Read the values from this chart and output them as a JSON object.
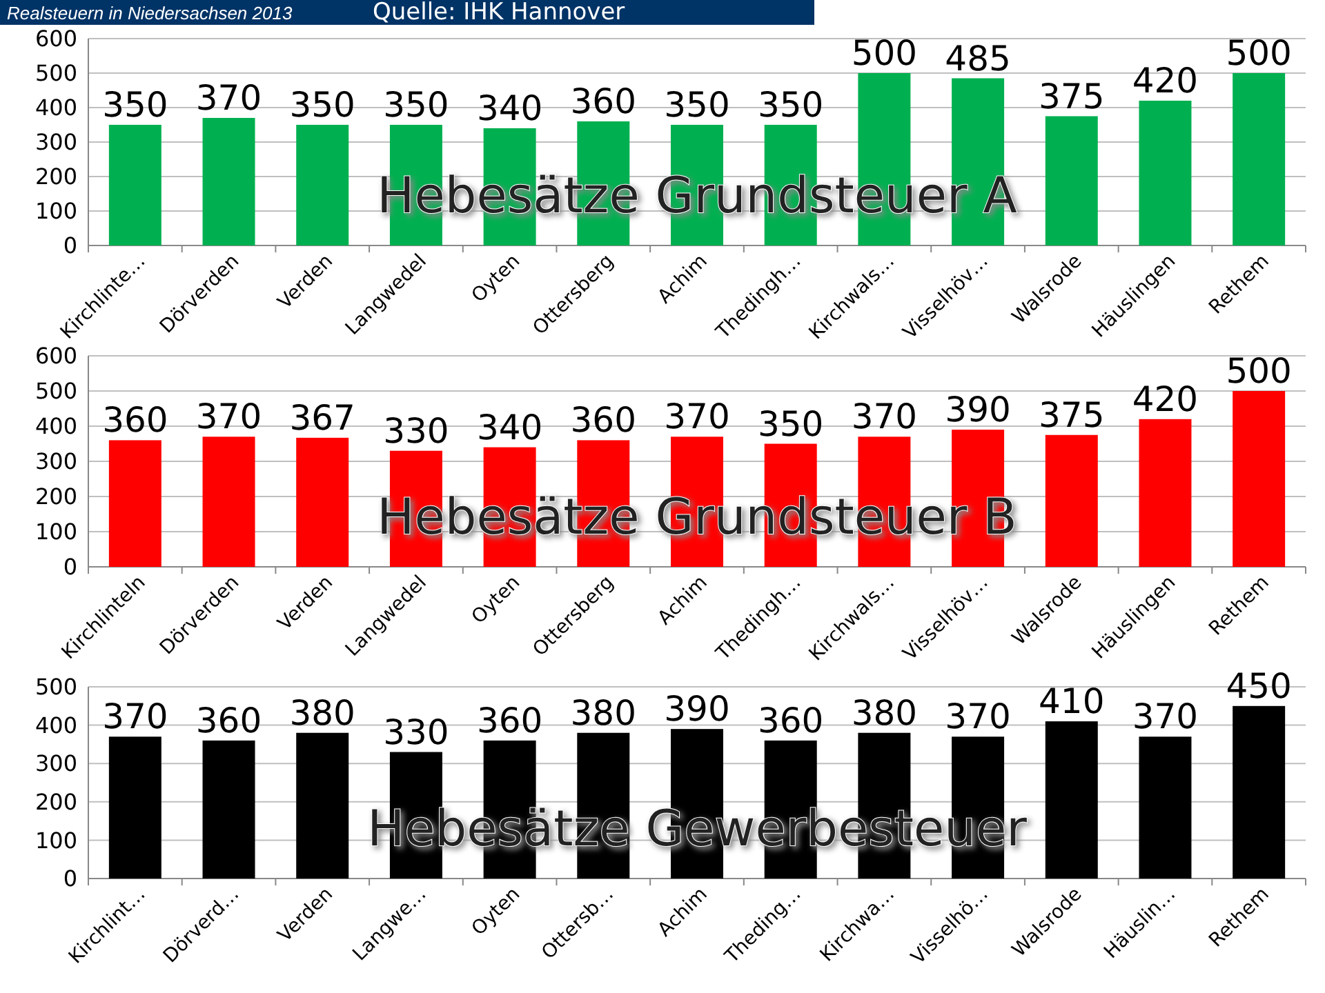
{
  "chart_data": [
    {
      "type": "bar",
      "title": "Hebesätze Grundsteuer A",
      "annotations": [
        "Realsteuern in Niedersachsen 2013",
        "Quelle: IHK Hannover"
      ],
      "categories": [
        "Kirchlinte…",
        "Dörverden",
        "Verden",
        "Langwedel",
        "Oyten",
        "Ottersberg",
        "Achim",
        "Thedingh…",
        "Kirchwals…",
        "Visselhöv…",
        "Walsrode",
        "Häuslingen",
        "Rethem"
      ],
      "values": [
        350,
        370,
        350,
        350,
        340,
        360,
        350,
        350,
        500,
        485,
        375,
        420,
        500
      ],
      "color": "#00b050",
      "ylim": [
        0,
        600
      ],
      "yticks": [
        0,
        100,
        200,
        300,
        400,
        500,
        600
      ],
      "grid": "y",
      "data_labels": true
    },
    {
      "type": "bar",
      "title": "Hebesätze Grundsteuer B",
      "categories": [
        "Kirchlinteln",
        "Dörverden",
        "Verden",
        "Langwedel",
        "Oyten",
        "Ottersberg",
        "Achim",
        "Thedingh…",
        "Kirchwals…",
        "Visselhöv…",
        "Walsrode",
        "Häuslingen",
        "Rethem"
      ],
      "values": [
        360,
        370,
        367,
        330,
        340,
        360,
        370,
        350,
        370,
        390,
        375,
        420,
        500
      ],
      "color": "#ff0000",
      "ylim": [
        0,
        600
      ],
      "yticks": [
        0,
        100,
        200,
        300,
        400,
        500,
        600
      ],
      "grid": "y",
      "data_labels": true
    },
    {
      "type": "bar",
      "title": "Hebesätze Gewerbesteuer",
      "categories": [
        "Kirchlint…",
        "Dörverd…",
        "Verden",
        "Langwe…",
        "Oyten",
        "Ottersb…",
        "Achim",
        "Theding…",
        "Kirchwa…",
        "Visselhö…",
        "Walsrode",
        "Häuslin…",
        "Rethem"
      ],
      "values": [
        370,
        360,
        380,
        330,
        360,
        380,
        390,
        360,
        380,
        370,
        410,
        370,
        450
      ],
      "color": "#000000",
      "ylim": [
        0,
        500
      ],
      "yticks": [
        0,
        100,
        200,
        300,
        400,
        500
      ],
      "grid": "y",
      "data_labels": true
    }
  ]
}
